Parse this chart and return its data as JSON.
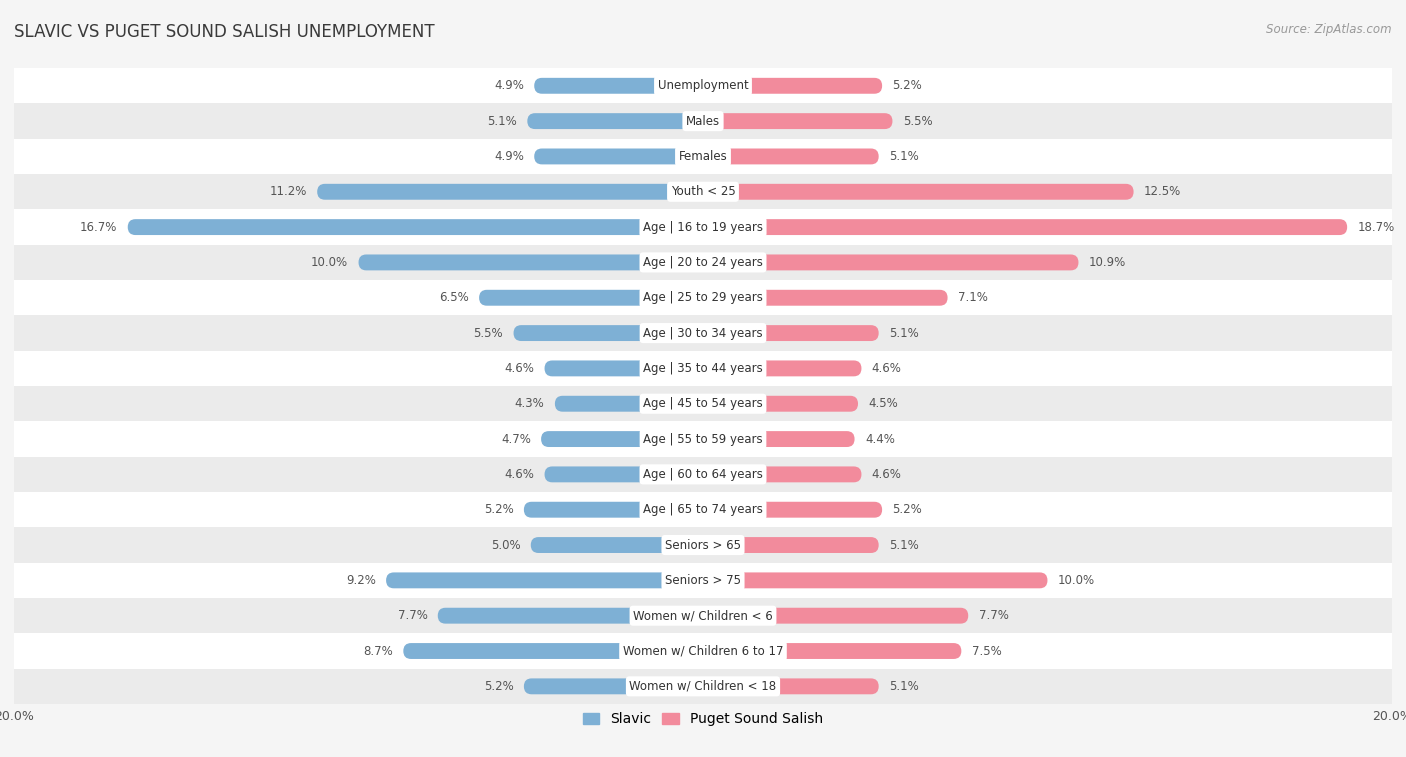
{
  "title": "SLAVIC VS PUGET SOUND SALISH UNEMPLOYMENT",
  "source": "Source: ZipAtlas.com",
  "categories": [
    "Unemployment",
    "Males",
    "Females",
    "Youth < 25",
    "Age | 16 to 19 years",
    "Age | 20 to 24 years",
    "Age | 25 to 29 years",
    "Age | 30 to 34 years",
    "Age | 35 to 44 years",
    "Age | 45 to 54 years",
    "Age | 55 to 59 years",
    "Age | 60 to 64 years",
    "Age | 65 to 74 years",
    "Seniors > 65",
    "Seniors > 75",
    "Women w/ Children < 6",
    "Women w/ Children 6 to 17",
    "Women w/ Children < 18"
  ],
  "slavic": [
    4.9,
    5.1,
    4.9,
    11.2,
    16.7,
    10.0,
    6.5,
    5.5,
    4.6,
    4.3,
    4.7,
    4.6,
    5.2,
    5.0,
    9.2,
    7.7,
    8.7,
    5.2
  ],
  "puget": [
    5.2,
    5.5,
    5.1,
    12.5,
    18.7,
    10.9,
    7.1,
    5.1,
    4.6,
    4.5,
    4.4,
    4.6,
    5.2,
    5.1,
    10.0,
    7.7,
    7.5,
    5.1
  ],
  "slavic_color": "#7EB0D5",
  "puget_color": "#F28B9C",
  "bg_color": "#f5f5f5",
  "row_color_even": "#ffffff",
  "row_color_odd": "#ebebeb",
  "label_color": "#555555",
  "title_color": "#3a3a3a",
  "source_color": "#999999",
  "legend_labels": [
    "Slavic",
    "Puget Sound Salish"
  ]
}
